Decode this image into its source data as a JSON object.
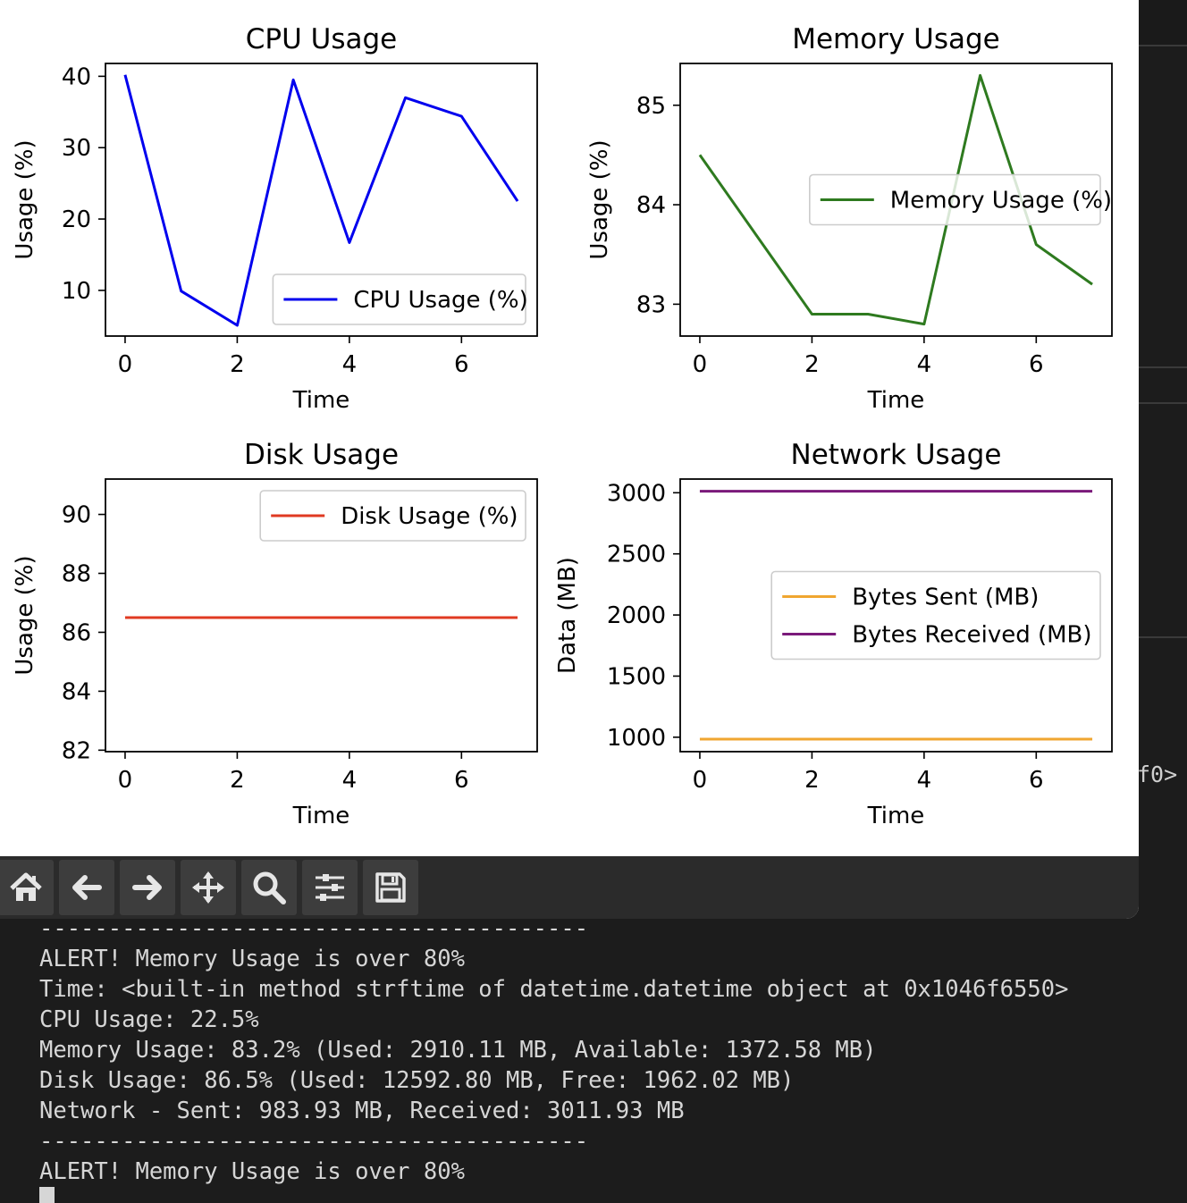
{
  "charts": [
    {
      "key": "cpu",
      "type": "line",
      "title": "CPU Usage",
      "xlabel": "Time",
      "ylabel": "Usage (%)",
      "xlim": [
        -0.35,
        7.35
      ],
      "ylim": [
        3.6,
        41.8
      ],
      "xticks": [
        0,
        2,
        4,
        6
      ],
      "yticks": [
        10,
        20,
        30,
        40
      ],
      "legend_loc": "lower-right",
      "series": [
        {
          "name": "CPU Usage (%)",
          "color": "#0000ee",
          "x": [
            0,
            1,
            2,
            3,
            4,
            5,
            6,
            7
          ],
          "y": [
            40.2,
            9.9,
            5.1,
            39.5,
            16.7,
            37.0,
            34.4,
            22.5
          ]
        }
      ]
    },
    {
      "key": "memory",
      "type": "line",
      "title": "Memory Usage",
      "xlabel": "Time",
      "ylabel": "Usage (%)",
      "xlim": [
        -0.35,
        7.35
      ],
      "ylim": [
        82.68,
        85.42
      ],
      "xticks": [
        0,
        2,
        4,
        6
      ],
      "yticks": [
        83,
        84,
        85
      ],
      "legend_loc": "center-right",
      "series": [
        {
          "name": "Memory Usage (%)",
          "color": "#2e7a1f",
          "x": [
            0,
            1,
            2,
            3,
            4,
            5,
            6,
            7
          ],
          "y": [
            84.5,
            83.7,
            82.9,
            82.9,
            82.8,
            85.3,
            83.6,
            83.2
          ]
        }
      ]
    },
    {
      "key": "disk",
      "type": "line",
      "title": "Disk Usage",
      "xlabel": "Time",
      "ylabel": "Usage (%)",
      "xlim": [
        -0.35,
        7.35
      ],
      "ylim": [
        81.95,
        91.2
      ],
      "xticks": [
        0,
        2,
        4,
        6
      ],
      "yticks": [
        82,
        84,
        86,
        88,
        90
      ],
      "legend_loc": "upper-right",
      "series": [
        {
          "name": "Disk Usage (%)",
          "color": "#e03a22",
          "x": [
            0,
            1,
            2,
            3,
            4,
            5,
            6,
            7
          ],
          "y": [
            86.5,
            86.5,
            86.5,
            86.5,
            86.5,
            86.5,
            86.5,
            86.5
          ]
        }
      ]
    },
    {
      "key": "network",
      "type": "line",
      "title": "Network Usage",
      "xlabel": "Time",
      "ylabel": "Data (MB)",
      "xlim": [
        -0.35,
        7.35
      ],
      "ylim": [
        882,
        3112
      ],
      "xticks": [
        0,
        2,
        4,
        6
      ],
      "yticks": [
        1000,
        1500,
        2000,
        2500,
        3000
      ],
      "legend_loc": "center-right",
      "series": [
        {
          "name": "Bytes Sent (MB)",
          "color": "#f0a630",
          "x": [
            0,
            1,
            2,
            3,
            4,
            5,
            6,
            7
          ],
          "y": [
            983.93,
            983.93,
            983.93,
            983.93,
            983.93,
            983.93,
            983.93,
            983.93
          ]
        },
        {
          "name": "Bytes Received (MB)",
          "color": "#7a1a7a",
          "x": [
            0,
            1,
            2,
            3,
            4,
            5,
            6,
            7
          ],
          "y": [
            3011.93,
            3011.93,
            3011.93,
            3011.93,
            3011.93,
            3011.93,
            3011.93,
            3011.93
          ]
        }
      ]
    }
  ],
  "toolbar": {
    "buttons": [
      {
        "name": "home-button",
        "icon": "home-icon"
      },
      {
        "name": "back-button",
        "icon": "arrow-left-icon"
      },
      {
        "name": "forward-button",
        "icon": "arrow-right-icon"
      },
      {
        "name": "pan-button",
        "icon": "move-icon"
      },
      {
        "name": "zoom-button",
        "icon": "magnifier-icon"
      },
      {
        "name": "configure-subplots-button",
        "icon": "sliders-icon"
      },
      {
        "name": "save-button",
        "icon": "floppy-disk-icon"
      }
    ]
  },
  "background_terminal": {
    "tail_text": "f0>"
  },
  "terminal": {
    "lines": [
      "----------------------------------------",
      "ALERT! Memory Usage is over 80%",
      "Time: <built-in method strftime of datetime.datetime object at 0x1046f6550>",
      "CPU Usage: 22.5%",
      "Memory Usage: 83.2% (Used: 2910.11 MB, Available: 1372.58 MB)",
      "Disk Usage: 86.5% (Used: 12592.80 MB, Free: 1962.02 MB)",
      "Network - Sent: 983.93 MB, Received: 3011.93 MB",
      "----------------------------------------",
      "ALERT! Memory Usage is over 80%"
    ]
  }
}
